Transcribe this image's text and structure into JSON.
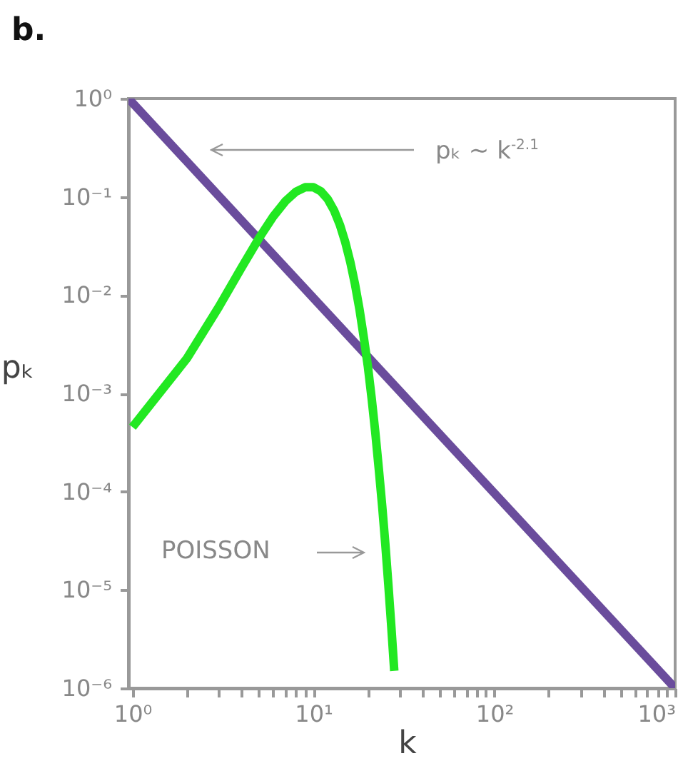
{
  "chart_data": {
    "type": "line",
    "title": "b.",
    "xlabel": "k",
    "ylabel": "pₖ",
    "log": "xy",
    "grid": false,
    "marker": "none",
    "line_style": "solid",
    "xlim": [
      0.95,
      1000
    ],
    "ylim": [
      1e-06,
      1
    ],
    "xticks": [
      {
        "value": 1,
        "label": "10⁰"
      },
      {
        "value": 2,
        "label": null
      },
      {
        "value": 3,
        "label": null
      },
      {
        "value": 4,
        "label": null
      },
      {
        "value": 5,
        "label": null
      },
      {
        "value": 6,
        "label": null
      },
      {
        "value": 7,
        "label": null
      },
      {
        "value": 8,
        "label": null
      },
      {
        "value": 9,
        "label": null
      },
      {
        "value": 10,
        "label": "10¹"
      },
      {
        "value": 20,
        "label": null
      },
      {
        "value": 30,
        "label": null
      },
      {
        "value": 40,
        "label": null
      },
      {
        "value": 50,
        "label": null
      },
      {
        "value": 60,
        "label": null
      },
      {
        "value": 70,
        "label": null
      },
      {
        "value": 80,
        "label": null
      },
      {
        "value": 90,
        "label": null
      },
      {
        "value": 100,
        "label": "10²"
      },
      {
        "value": 200,
        "label": null
      },
      {
        "value": 300,
        "label": null
      },
      {
        "value": 400,
        "label": null
      },
      {
        "value": 500,
        "label": null
      },
      {
        "value": 600,
        "label": null
      },
      {
        "value": 700,
        "label": null
      },
      {
        "value": 800,
        "label": null
      },
      {
        "value": 900,
        "label": null
      },
      {
        "value": 1000,
        "label": "10³"
      }
    ],
    "yticks": [
      {
        "value": 1e-06,
        "label": "10⁻⁶"
      },
      {
        "value": 1e-05,
        "label": "10⁻⁵"
      },
      {
        "value": 0.0001,
        "label": "10⁻⁴"
      },
      {
        "value": 0.001,
        "label": "10⁻³"
      },
      {
        "value": 0.01,
        "label": "10⁻²"
      },
      {
        "value": 0.1,
        "label": "10⁻¹"
      },
      {
        "value": 1,
        "label": "10⁰"
      }
    ],
    "annotations": [
      "pₖ ~ k$^{-2.1}$",
      "POISSON"
    ],
    "series": [
      {
        "color": "#6a4c9c",
        "x": [
          0.95,
          1000
        ],
        "values": [
          1,
          1e-06
        ]
      },
      {
        "color": "#22e822",
        "x": [
          1,
          2,
          3,
          4,
          5,
          6,
          7,
          8,
          9,
          10,
          11,
          12,
          13,
          14,
          15,
          16,
          17,
          18,
          19,
          20,
          21,
          22,
          23,
          24,
          25,
          26,
          27,
          28
        ],
        "values": [
          0.000454,
          0.00227,
          0.00757,
          0.0189,
          0.0378,
          0.0631,
          0.0901,
          0.1126,
          0.1251,
          0.1251,
          0.1137,
          0.0948,
          0.0729,
          0.0521,
          0.0347,
          0.0217,
          0.0128,
          0.0071,
          0.0037,
          0.0019,
          0.00089,
          0.0004,
          0.00017,
          7.2e-05,
          2.9e-05,
          1.1e-05,
          4.1e-06,
          1.5e-06
        ]
      }
    ]
  }
}
